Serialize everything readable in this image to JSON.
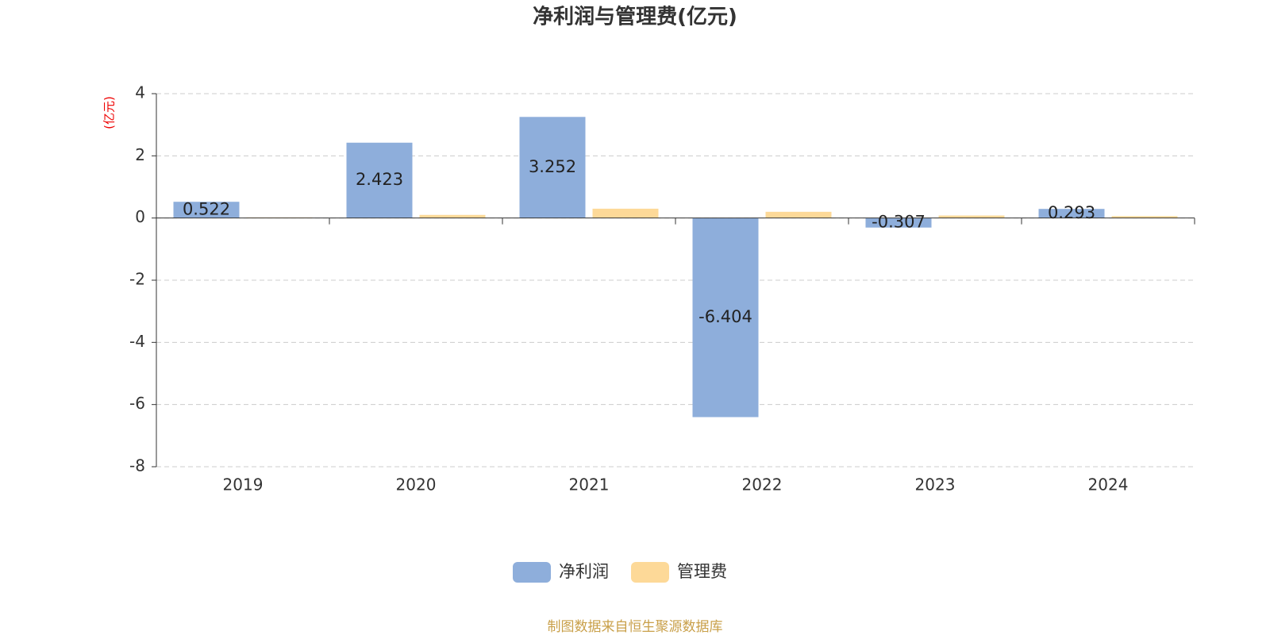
{
  "chart_data": {
    "type": "bar",
    "title": "净利润与管理费(亿元)",
    "y_axis_label": "(亿元)",
    "categories": [
      "2019",
      "2020",
      "2021",
      "2022",
      "2023",
      "2024"
    ],
    "series": [
      {
        "name": "净利润",
        "color": "#8eaedb",
        "values": [
          0.522,
          2.423,
          3.252,
          -6.404,
          -0.307,
          0.293
        ]
      },
      {
        "name": "管理费",
        "color": "#fdd998",
        "values": [
          0.02,
          0.1,
          0.3,
          0.2,
          0.08,
          0.06
        ]
      }
    ],
    "labeled_series": [
      0
    ],
    "ylim": [
      -8,
      4
    ],
    "yticks": [
      -8,
      -6,
      -4,
      -2,
      0,
      2,
      4
    ],
    "grid": true,
    "source": "制图数据来自恒生聚源数据库"
  }
}
